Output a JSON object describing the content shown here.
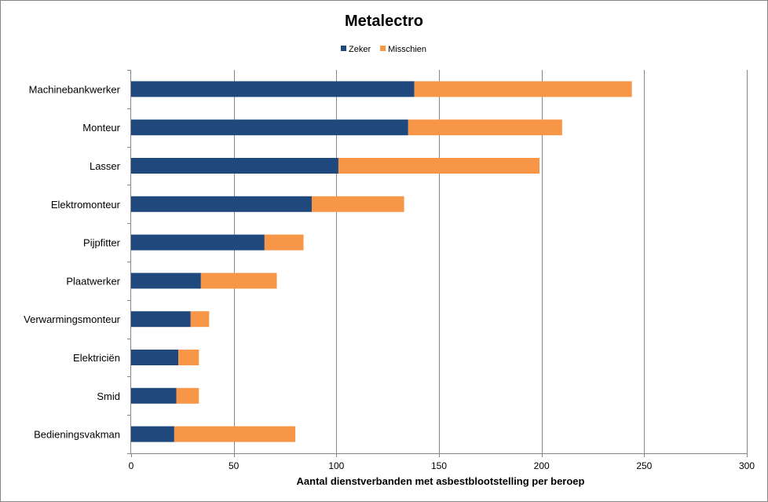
{
  "chart_data": {
    "type": "bar",
    "orientation": "horizontal",
    "stacked": true,
    "title": "Metalectro",
    "xlabel": "Aantal dienstverbanden met asbestblootstelling per beroep",
    "ylabel": "",
    "xlim": [
      0,
      300
    ],
    "x_ticks": [
      0,
      50,
      100,
      150,
      200,
      250,
      300
    ],
    "grid": "vertical",
    "legend_position": "top",
    "categories": [
      "Machinebankwerker",
      "Monteur",
      "Lasser",
      "Elektromonteur",
      "Pijpfitter",
      "Plaatwerker",
      "Verwarmingsmonteur",
      "Elektriciën",
      "Smid",
      "Bedieningsvakman"
    ],
    "series": [
      {
        "name": "Zeker",
        "color": "#1f497d",
        "values": [
          138,
          135,
          101,
          88,
          65,
          34,
          29,
          23,
          22,
          21
        ]
      },
      {
        "name": "Misschien",
        "color": "#f79646",
        "values": [
          106,
          75,
          98,
          45,
          19,
          37,
          9,
          10,
          11,
          59
        ]
      }
    ]
  }
}
